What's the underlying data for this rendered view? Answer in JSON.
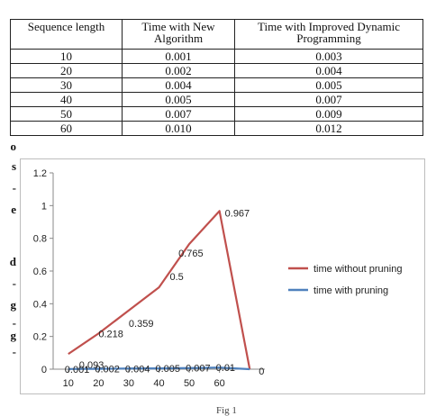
{
  "table": {
    "headers": [
      "Sequence length",
      "Time with New Algorithm",
      "Time with Improved Dynamic Programming"
    ],
    "rows": [
      [
        "10",
        "0.001",
        "0.003"
      ],
      [
        "20",
        "0.002",
        "0.004"
      ],
      [
        "30",
        "0.004",
        "0.005"
      ],
      [
        "40",
        "0.005",
        "0.007"
      ],
      [
        "50",
        "0.007",
        "0.009"
      ],
      [
        "60",
        "0.010",
        "0.012"
      ]
    ]
  },
  "margin_fragments": [
    "o",
    "s",
    "-",
    "e",
    "",
    "d",
    "-",
    "g",
    "-",
    "g",
    "-"
  ],
  "caption_fragment": "Fig 1",
  "chart_data": {
    "type": "line",
    "x": [
      10,
      20,
      30,
      40,
      50,
      60,
      70
    ],
    "xticks": [
      "10",
      "20",
      "30",
      "40",
      "50",
      "60"
    ],
    "yticks": [
      "0",
      "0.2",
      "0.4",
      "0.6",
      "0.8",
      "1",
      "1.2"
    ],
    "ylim": [
      0,
      1.2
    ],
    "grid": false,
    "legend_position": "right",
    "series": [
      {
        "name": "time without pruning",
        "color": "#c0504d",
        "values": [
          0.093,
          0.218,
          0.359,
          0.5,
          0.765,
          0.967,
          0
        ],
        "labels": [
          "0.093",
          "0.218",
          "0.359",
          "0.5",
          "0.765",
          "0.967",
          "0"
        ]
      },
      {
        "name": "time with pruning",
        "color": "#4f81bd",
        "values": [
          0.001,
          0.002,
          0.004,
          0.005,
          0.007,
          0.01,
          0
        ],
        "labels": [
          "0.001",
          "0.002",
          "0.004",
          "0.005",
          "0.007",
          "0.01",
          ""
        ]
      }
    ]
  }
}
